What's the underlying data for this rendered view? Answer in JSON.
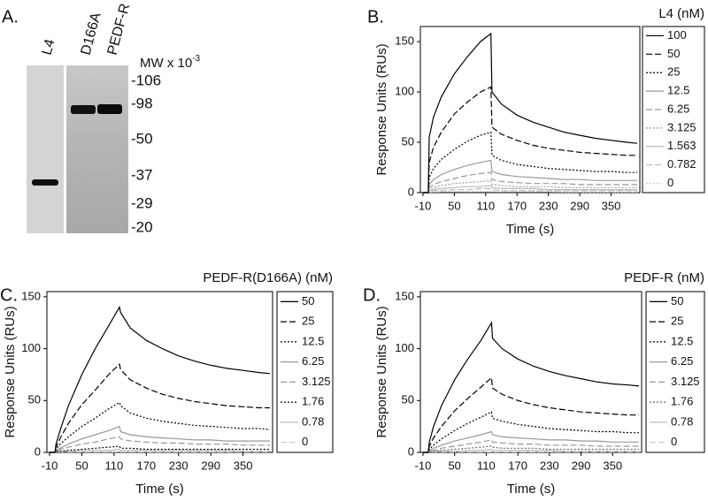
{
  "gel": {
    "panel_label": "A.",
    "lanes": [
      "L4",
      "D166A",
      "PEDF-R"
    ],
    "mw_label": "MW x 10",
    "mw_exponent": "-3",
    "markers": [
      "-106",
      "-98",
      "-50",
      "-37",
      "-29",
      "-20"
    ]
  },
  "chart_data": [
    {
      "type": "line",
      "panel_label": "B.",
      "legend_title": "L4 (nM)",
      "xlabel": "Time (s)",
      "ylabel": "Response Units (RUs)",
      "x": [
        -10,
        0,
        2,
        10,
        25,
        50,
        75,
        100,
        120,
        122,
        140,
        170,
        200,
        230,
        260,
        290,
        320,
        350,
        380,
        400
      ],
      "xlim": [
        -15,
        405
      ],
      "xticks": [
        -10,
        50,
        110,
        170,
        230,
        290,
        350
      ],
      "ylim": [
        0,
        165
      ],
      "yticks": [
        0,
        50,
        100,
        150
      ],
      "series": [
        {
          "name": "100",
          "color": "#000000",
          "dash": "solid",
          "values": [
            0,
            0,
            55,
            75,
            95,
            118,
            135,
            150,
            158,
            100,
            88,
            77,
            70,
            65,
            60,
            57,
            54,
            52,
            50,
            49
          ]
        },
        {
          "name": "50",
          "color": "#000000",
          "dash": "dashed",
          "values": [
            0,
            0,
            30,
            45,
            60,
            78,
            90,
            100,
            105,
            65,
            58,
            52,
            47,
            44,
            42,
            40,
            39,
            38,
            37,
            37
          ]
        },
        {
          "name": "25",
          "color": "#000000",
          "dash": "dotted",
          "values": [
            0,
            0,
            15,
            24,
            33,
            43,
            51,
            57,
            60,
            37,
            32,
            28,
            26,
            24,
            23,
            22,
            21,
            21,
            20,
            20
          ]
        },
        {
          "name": "12.5",
          "color": "#999999",
          "dash": "solid",
          "values": [
            0,
            0,
            8,
            13,
            18,
            23,
            27,
            30,
            32,
            21,
            18,
            16,
            15,
            14,
            13,
            13,
            12,
            12,
            12,
            12
          ]
        },
        {
          "name": "6.25",
          "color": "#999999",
          "dash": "dashed",
          "values": [
            0,
            0,
            5,
            8,
            11,
            14,
            17,
            19,
            20,
            13,
            11,
            10,
            9,
            9,
            9,
            8,
            8,
            8,
            8,
            8
          ]
        },
        {
          "name": "3.125",
          "color": "#999999",
          "dash": "dotted",
          "values": [
            0,
            0,
            3,
            5,
            7,
            9,
            10,
            11,
            12,
            8,
            7,
            6,
            6,
            6,
            5,
            5,
            5,
            5,
            5,
            5
          ]
        },
        {
          "name": "1.563",
          "color": "#bbbbbb",
          "dash": "solid",
          "values": [
            0,
            0,
            2,
            3,
            4,
            5,
            6,
            6,
            7,
            5,
            4,
            4,
            4,
            3,
            3,
            3,
            3,
            3,
            3,
            3
          ]
        },
        {
          "name": "0.782",
          "color": "#bbbbbb",
          "dash": "dashed",
          "values": [
            0,
            0,
            1,
            2,
            2,
            3,
            3,
            4,
            4,
            3,
            2,
            2,
            2,
            2,
            2,
            2,
            2,
            2,
            2,
            2
          ]
        },
        {
          "name": "0",
          "color": "#cccccc",
          "dash": "dotted",
          "values": [
            0,
            0,
            0.5,
            0.5,
            1,
            1,
            1,
            1,
            1,
            1,
            1,
            1,
            1,
            1,
            0.5,
            0.5,
            0.5,
            0.5,
            0.5,
            0.5
          ]
        }
      ]
    },
    {
      "type": "line",
      "panel_label": "C.",
      "legend_title": "PEDF-R(D166A) (nM)",
      "xlabel": "Time (s)",
      "ylabel": "Response Units (RUs)",
      "x": [
        -10,
        0,
        2,
        10,
        25,
        50,
        75,
        100,
        120,
        122,
        140,
        170,
        200,
        230,
        260,
        290,
        320,
        350,
        380,
        400
      ],
      "xlim": [
        -15,
        405
      ],
      "xticks": [
        -10,
        50,
        110,
        170,
        230,
        290,
        350
      ],
      "ylim": [
        0,
        155
      ],
      "yticks": [
        0,
        50,
        100,
        150
      ],
      "series": [
        {
          "name": "50",
          "color": "#000000",
          "dash": "solid",
          "values": [
            0,
            0,
            8,
            22,
            45,
            75,
            100,
            122,
            140,
            135,
            120,
            108,
            100,
            93,
            88,
            84,
            81,
            79,
            77,
            76
          ]
        },
        {
          "name": "25",
          "color": "#000000",
          "dash": "dashed",
          "values": [
            0,
            0,
            5,
            14,
            28,
            46,
            60,
            75,
            85,
            80,
            70,
            62,
            56,
            52,
            49,
            47,
            45,
            44,
            43,
            43
          ]
        },
        {
          "name": "12.5",
          "color": "#000000",
          "dash": "dotted",
          "values": [
            0,
            0,
            3,
            8,
            15,
            25,
            33,
            42,
            48,
            45,
            38,
            33,
            30,
            28,
            26,
            25,
            24,
            23,
            23,
            22
          ]
        },
        {
          "name": "6.25",
          "color": "#999999",
          "dash": "solid",
          "values": [
            0,
            0,
            2,
            4,
            8,
            13,
            17,
            21,
            25,
            20,
            17,
            15,
            14,
            13,
            12,
            12,
            11,
            11,
            11,
            11
          ]
        },
        {
          "name": "3.125",
          "color": "#999999",
          "dash": "dashed",
          "values": [
            0,
            0,
            1,
            3,
            5,
            8,
            10,
            13,
            15,
            13,
            11,
            10,
            9,
            9,
            8,
            8,
            8,
            7,
            7,
            7
          ]
        },
        {
          "name": "1.76",
          "color": "#000000",
          "dash": "dotted",
          "values": [
            0,
            0,
            1,
            1,
            2,
            3,
            4,
            5,
            6,
            4,
            4,
            3,
            3,
            3,
            3,
            3,
            3,
            3,
            3,
            3
          ]
        },
        {
          "name": "0.78",
          "color": "#bbbbbb",
          "dash": "solid",
          "values": [
            0,
            0,
            0.5,
            1,
            1,
            2,
            2,
            2,
            3,
            2,
            2,
            2,
            2,
            2,
            2,
            2,
            2,
            1,
            1,
            1
          ]
        },
        {
          "name": "0",
          "color": "#cccccc",
          "dash": "dashed",
          "values": [
            0,
            0,
            0.5,
            0.5,
            0.5,
            0.5,
            0.5,
            0.5,
            0.5,
            0.5,
            0.5,
            0.5,
            0.5,
            0.5,
            0.5,
            0.5,
            0.5,
            0.5,
            0.5,
            0.5
          ]
        }
      ]
    },
    {
      "type": "line",
      "panel_label": "D.",
      "legend_title": "PEDF-R (nM)",
      "xlabel": "Time (s)",
      "ylabel": "Response Units (RUs)",
      "x": [
        -10,
        0,
        2,
        10,
        25,
        50,
        75,
        100,
        120,
        122,
        140,
        170,
        200,
        230,
        260,
        290,
        320,
        350,
        380,
        400
      ],
      "xlim": [
        -15,
        405
      ],
      "xticks": [
        -10,
        50,
        110,
        170,
        230,
        290,
        350
      ],
      "ylim": [
        0,
        155
      ],
      "yticks": [
        0,
        50,
        100,
        150
      ],
      "series": [
        {
          "name": "50",
          "color": "#000000",
          "dash": "solid",
          "values": [
            0,
            0,
            10,
            25,
            45,
            70,
            90,
            108,
            125,
            110,
            100,
            90,
            83,
            78,
            74,
            71,
            68,
            66,
            65,
            64
          ]
        },
        {
          "name": "25",
          "color": "#000000",
          "dash": "dashed",
          "values": [
            0,
            0,
            6,
            14,
            25,
            40,
            52,
            63,
            72,
            62,
            56,
            50,
            46,
            43,
            41,
            39,
            38,
            37,
            36,
            36
          ]
        },
        {
          "name": "12.5",
          "color": "#000000",
          "dash": "dotted",
          "values": [
            0,
            0,
            3,
            7,
            13,
            21,
            28,
            34,
            39,
            33,
            30,
            27,
            25,
            23,
            22,
            21,
            20,
            20,
            19,
            19
          ]
        },
        {
          "name": "6.25",
          "color": "#999999",
          "dash": "solid",
          "values": [
            0,
            0,
            2,
            4,
            7,
            11,
            14,
            17,
            20,
            17,
            15,
            14,
            13,
            12,
            12,
            11,
            11,
            10,
            10,
            10
          ]
        },
        {
          "name": "3.125",
          "color": "#999999",
          "dash": "dashed",
          "values": [
            0,
            0,
            1,
            2,
            4,
            6,
            8,
            10,
            12,
            10,
            9,
            8,
            8,
            7,
            7,
            7,
            6,
            6,
            6,
            6
          ]
        },
        {
          "name": "1.76",
          "color": "#666666",
          "dash": "dotted",
          "values": [
            0,
            0,
            1,
            1,
            2,
            3,
            4,
            5,
            6,
            5,
            4,
            4,
            4,
            3,
            3,
            3,
            3,
            3,
            3,
            3
          ]
        },
        {
          "name": "0.78",
          "color": "#bbbbbb",
          "dash": "solid",
          "values": [
            0,
            0,
            0.5,
            1,
            1,
            1,
            2,
            2,
            3,
            2,
            2,
            2,
            2,
            2,
            1,
            1,
            1,
            1,
            1,
            1
          ]
        },
        {
          "name": "0",
          "color": "#cccccc",
          "dash": "dashed",
          "values": [
            0,
            0,
            0.5,
            0.5,
            0.5,
            0.5,
            0.5,
            0.5,
            0.5,
            0.5,
            0.5,
            0.5,
            0.5,
            0.5,
            0.5,
            0.5,
            0.5,
            0.5,
            0.5,
            0.5
          ]
        }
      ]
    }
  ]
}
